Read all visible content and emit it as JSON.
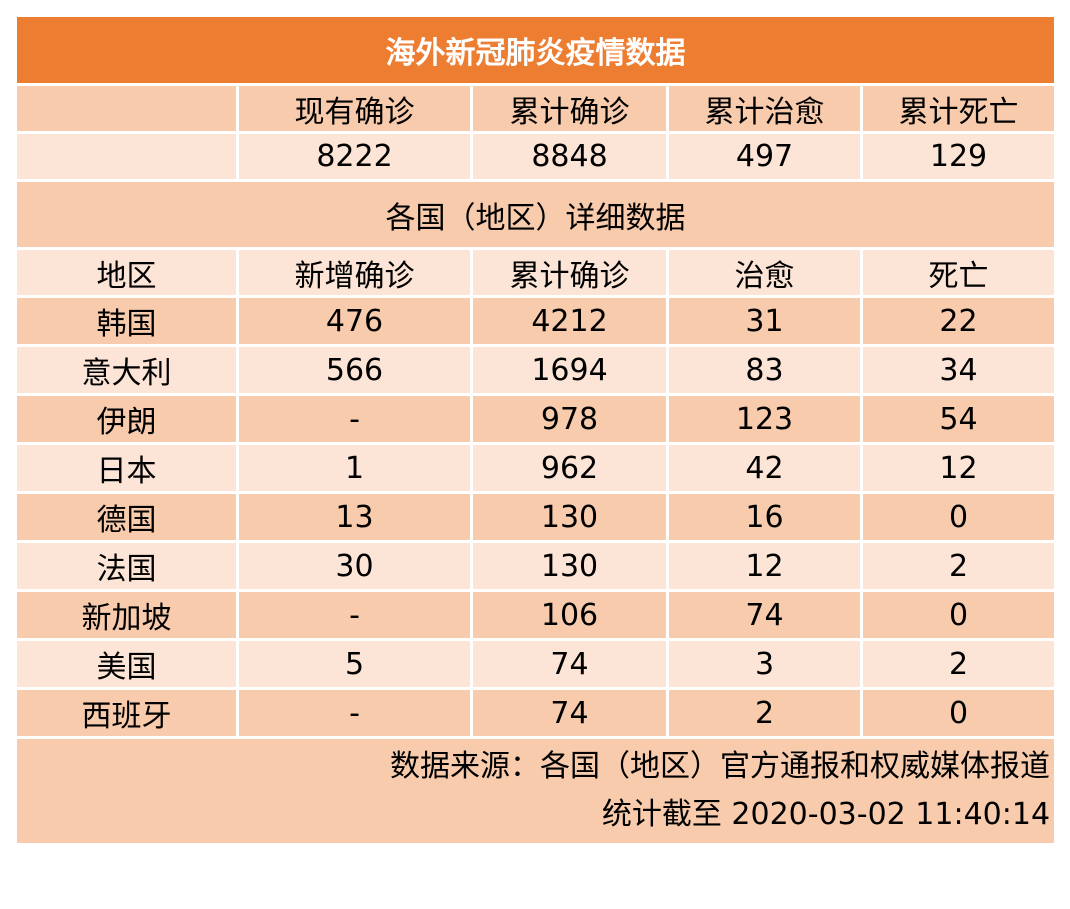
{
  "title": "海外新冠肺炎疫情数据",
  "summary": {
    "headers": [
      "",
      "现有确诊",
      "累计确诊",
      "累计治愈",
      "累计死亡"
    ],
    "values": [
      "",
      "8222",
      "8848",
      "497",
      "129"
    ]
  },
  "subtitle": "各国（地区）详细数据",
  "detail_headers": [
    "地区",
    "新增确诊",
    "累计确诊",
    "治愈",
    "死亡"
  ],
  "rows": [
    [
      "韩国",
      "476",
      "4212",
      "31",
      "22"
    ],
    [
      "意大利",
      "566",
      "1694",
      "83",
      "34"
    ],
    [
      "伊朗",
      "-",
      "978",
      "123",
      "54"
    ],
    [
      "日本",
      "1",
      "962",
      "42",
      "12"
    ],
    [
      "德国",
      "13",
      "130",
      "16",
      "0"
    ],
    [
      "法国",
      "30",
      "130",
      "12",
      "2"
    ],
    [
      "新加坡",
      "-",
      "106",
      "74",
      "0"
    ],
    [
      "美国",
      "5",
      "74",
      "3",
      "2"
    ],
    [
      "西班牙",
      "-",
      "74",
      "2",
      "0"
    ]
  ],
  "footer": {
    "source": "数据来源：各国（地区）官方通报和权威媒体报道",
    "timestamp": "统计截至 2020-03-02   11:40:14"
  },
  "colors": {
    "title_bg": "#ed7d31",
    "dark_row": "#f8cbad",
    "light_row": "#fce4d6"
  }
}
